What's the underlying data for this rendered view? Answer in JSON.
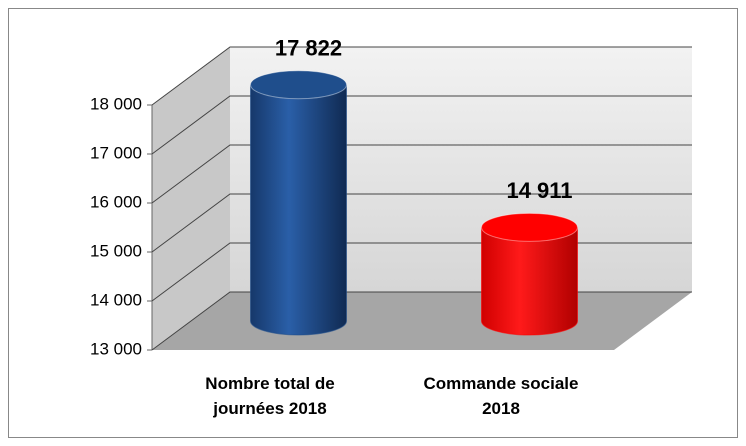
{
  "chart_data": {
    "type": "bar",
    "categories": [
      "Nombre total de journées 2018",
      "Commande sociale 2018"
    ],
    "values": [
      17822,
      14911
    ],
    "value_labels": [
      "17 822",
      "14 911"
    ],
    "colors": [
      "#1f4e8c",
      "#ff0000"
    ],
    "ylim": [
      13000,
      18000
    ],
    "yticks": [
      {
        "value": 13000,
        "label": "13 000"
      },
      {
        "value": 14000,
        "label": "14 000"
      },
      {
        "value": 15000,
        "label": "15 000"
      },
      {
        "value": 16000,
        "label": "16 000"
      },
      {
        "value": 17000,
        "label": "17 000"
      },
      {
        "value": 18000,
        "label": "18 000"
      }
    ],
    "grid": true
  }
}
